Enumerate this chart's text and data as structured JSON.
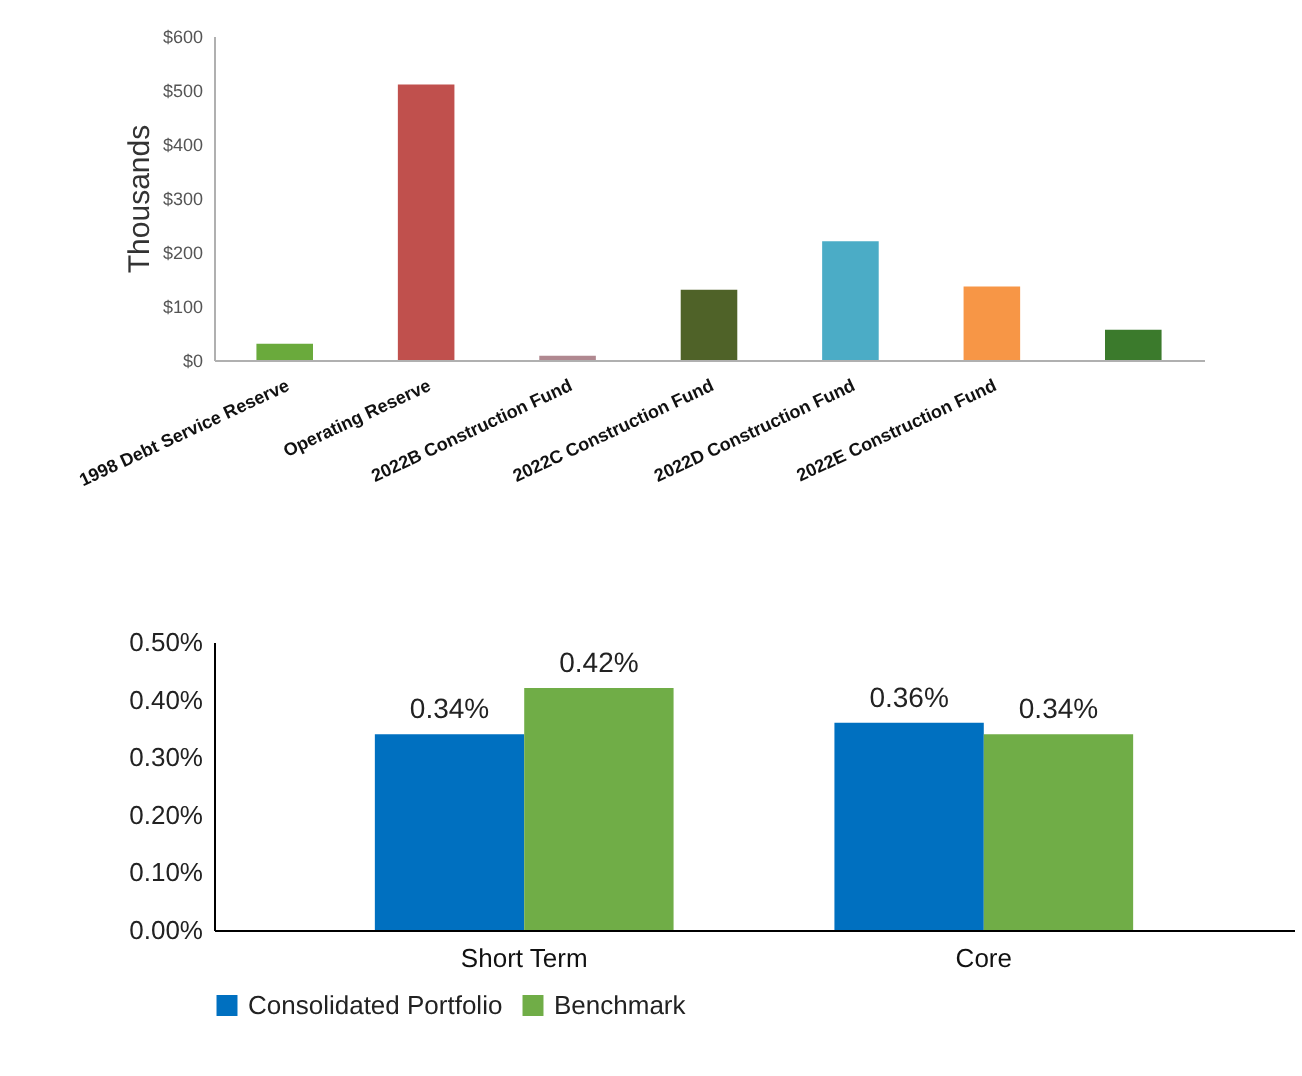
{
  "chart_data": [
    {
      "type": "bar",
      "ylabel": "Thousands",
      "categories": [
        "1998 Debt Service Reserve",
        "Operating Reserve",
        "2022B Construction Fund",
        "2022C Construction Fund",
        "2022D Construction Fund",
        "2022E Construction Fund",
        null
      ],
      "values": [
        30,
        510,
        8,
        130,
        220,
        136,
        56
      ],
      "colors": [
        "#6aaa3c",
        "#c0504d",
        "#b08890",
        "#4f6228",
        "#4bacc6",
        "#f79646",
        "#3b7a2c"
      ],
      "ylim": [
        0,
        600
      ],
      "yticks": [
        {
          "value": 0,
          "label": "$0"
        },
        {
          "value": 100,
          "label": "$100"
        },
        {
          "value": 200,
          "label": "$200"
        },
        {
          "value": 300,
          "label": "$300"
        },
        {
          "value": 400,
          "label": "$400"
        },
        {
          "value": 500,
          "label": "$500"
        },
        {
          "value": 600,
          "label": "$600"
        }
      ],
      "grid": false
    },
    {
      "type": "bar",
      "categories": [
        "Short Term",
        "Core"
      ],
      "series": [
        {
          "name": "Consolidated Portfolio",
          "color": "#0070c0",
          "values": [
            0.34,
            0.36
          ],
          "value_labels": [
            "0.34%",
            "0.36%"
          ]
        },
        {
          "name": "Benchmark",
          "color": "#70ad47",
          "values": [
            0.42,
            0.34
          ],
          "value_labels": [
            "0.42%",
            "0.34%"
          ]
        }
      ],
      "ylim": [
        0,
        0.5
      ],
      "yticks": [
        {
          "value": 0,
          "label": "0.00%"
        },
        {
          "value": 0.1,
          "label": "0.10%"
        },
        {
          "value": 0.2,
          "label": "0.20%"
        },
        {
          "value": 0.3,
          "label": "0.30%"
        },
        {
          "value": 0.4,
          "label": "0.40%"
        },
        {
          "value": 0.5,
          "label": "0.50%"
        }
      ],
      "grid": false,
      "legend": "bottom"
    }
  ]
}
